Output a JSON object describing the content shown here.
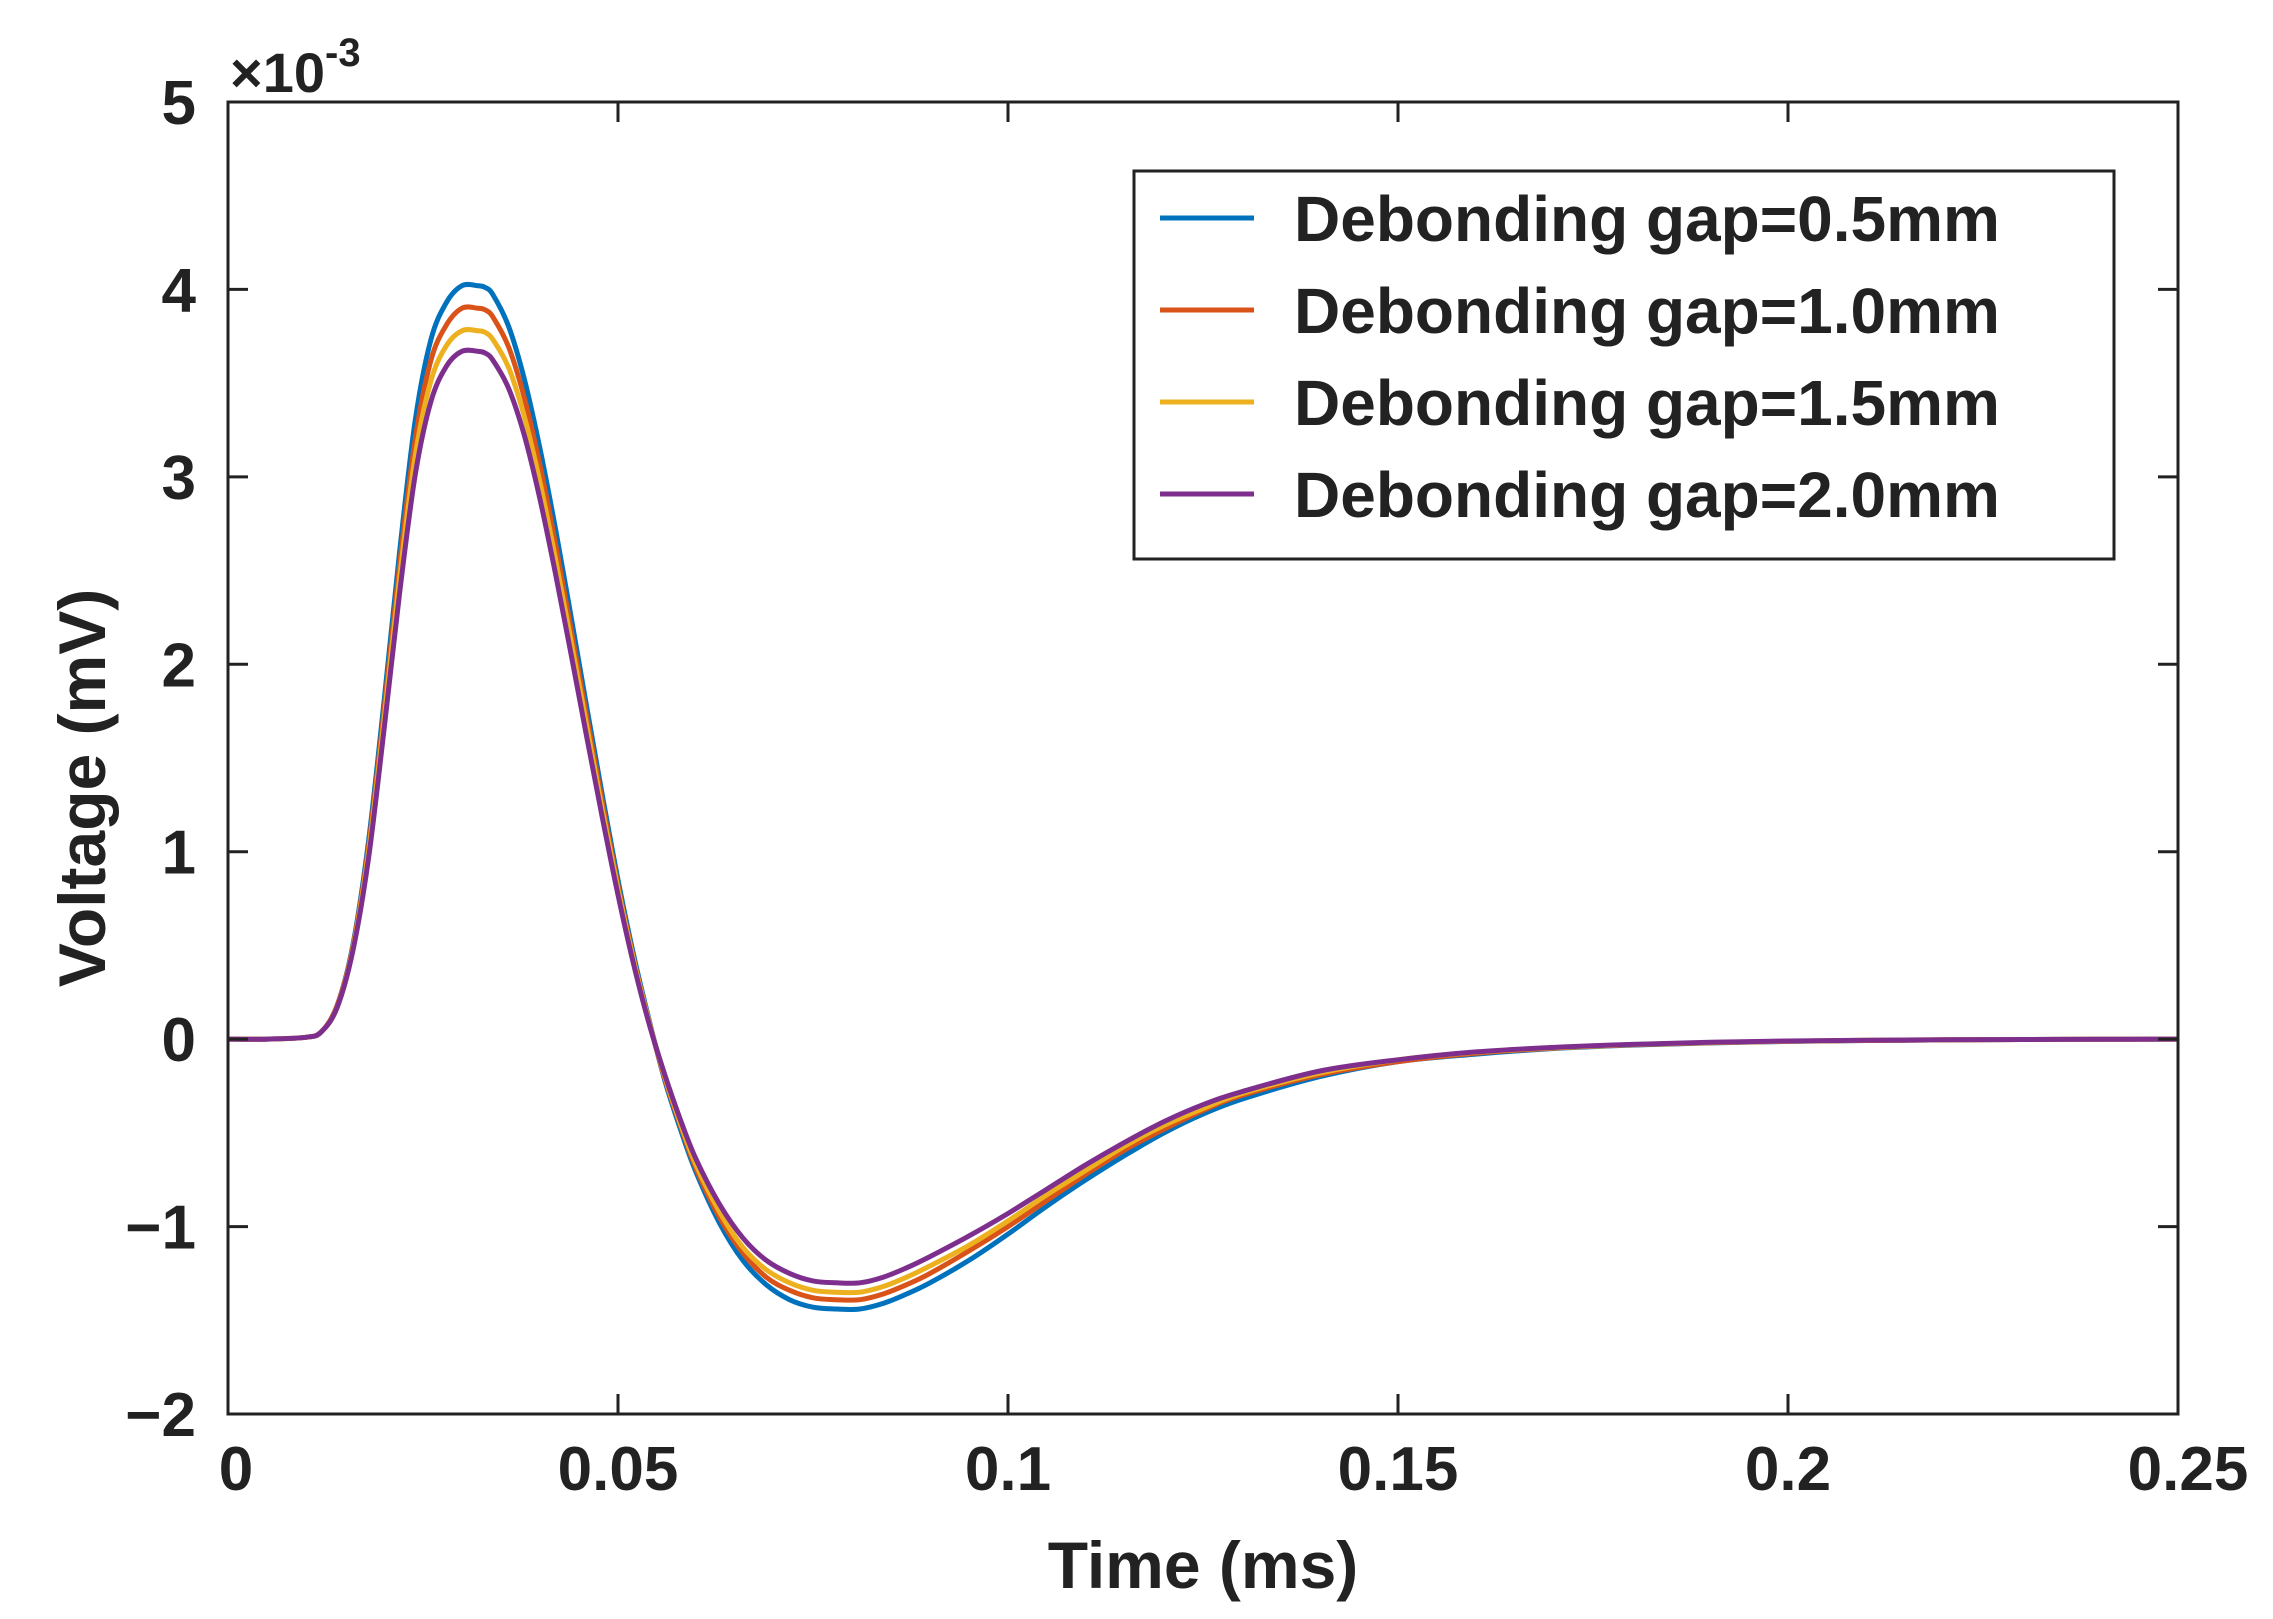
{
  "chart_data": {
    "type": "line",
    "title": "",
    "xlabel": "Time (ms)",
    "ylabel": "Voltage (mV)",
    "xlim": [
      0,
      0.25
    ],
    "ylim": [
      -0.002,
      0.005
    ],
    "y_exponent_label": "×10",
    "y_exponent_power": "-3",
    "x_ticks": [
      0,
      0.05,
      0.1,
      0.15,
      0.2,
      0.25
    ],
    "x_tick_labels": [
      "0",
      "0.05",
      "0.1",
      "0.15",
      "0.2",
      "0.25"
    ],
    "y_ticks": [
      -0.002,
      -0.001,
      0,
      0.001,
      0.002,
      0.003,
      0.004,
      0.005
    ],
    "y_tick_labels": [
      "−2",
      "−1",
      "0",
      "1",
      "2",
      "3",
      "4",
      "5"
    ],
    "grid": false,
    "legend_position": "top-right",
    "x": [
      0,
      0.005,
      0.01,
      0.012,
      0.014,
      0.016,
      0.018,
      0.02,
      0.022,
      0.024,
      0.026,
      0.028,
      0.03,
      0.032,
      0.033,
      0.034,
      0.036,
      0.038,
      0.04,
      0.042,
      0.044,
      0.046,
      0.048,
      0.05,
      0.052,
      0.054,
      0.056,
      0.058,
      0.06,
      0.063,
      0.066,
      0.069,
      0.072,
      0.075,
      0.078,
      0.081,
      0.084,
      0.087,
      0.09,
      0.095,
      0.1,
      0.105,
      0.11,
      0.115,
      0.12,
      0.125,
      0.13,
      0.14,
      0.15,
      0.16,
      0.17,
      0.18,
      0.19,
      0.2,
      0.21,
      0.22,
      0.23,
      0.24,
      0.25
    ],
    "series": [
      {
        "name": "Debonding gap=0.5mm",
        "color": "#0072BD",
        "values": [
          0,
          0,
          1e-05,
          4e-05,
          0.00018,
          0.0005,
          0.00105,
          0.0018,
          0.0026,
          0.0033,
          0.00373,
          0.00393,
          0.00402,
          0.00402,
          0.00401,
          0.00397,
          0.0038,
          0.00352,
          0.00315,
          0.00272,
          0.00225,
          0.00177,
          0.0013,
          0.00085,
          0.00045,
          0.0001,
          -0.00022,
          -0.00048,
          -0.00071,
          -0.00098,
          -0.00118,
          -0.00131,
          -0.00139,
          -0.00143,
          -0.00144,
          -0.00144,
          -0.00141,
          -0.00136,
          -0.0013,
          -0.00118,
          -0.00104,
          -0.00089,
          -0.00075,
          -0.00062,
          -0.0005,
          -0.0004,
          -0.00032,
          -0.0002,
          -0.00012,
          -8e-05,
          -5e-05,
          -3.2e-05,
          -2e-05,
          -1.2e-05,
          -7e-06,
          -4e-06,
          -2e-06,
          -1e-06,
          0
        ]
      },
      {
        "name": "Debonding gap=1.0mm",
        "color": "#D95319",
        "values": [
          0,
          0,
          1e-05,
          4e-05,
          0.00018,
          0.00049,
          0.00102,
          0.00175,
          0.00253,
          0.0032,
          0.00362,
          0.00381,
          0.0039,
          0.0039,
          0.00389,
          0.00385,
          0.00369,
          0.00342,
          0.00306,
          0.00264,
          0.00218,
          0.00172,
          0.00126,
          0.00082,
          0.00043,
          9e-05,
          -0.00021,
          -0.00046,
          -0.00069,
          -0.00095,
          -0.00114,
          -0.00127,
          -0.00134,
          -0.00138,
          -0.00139,
          -0.00139,
          -0.00136,
          -0.00131,
          -0.00125,
          -0.00113,
          -0.001,
          -0.00086,
          -0.00072,
          -0.00059,
          -0.00048,
          -0.00038,
          -0.0003,
          -0.00019,
          -0.00012,
          -7.5e-05,
          -4.8e-05,
          -3e-05,
          -1.9e-05,
          -1.1e-05,
          -7e-06,
          -4e-06,
          -2e-06,
          -1e-06,
          0
        ]
      },
      {
        "name": "Debonding gap=1.5mm",
        "color": "#EDB120",
        "values": [
          0,
          0,
          1e-05,
          4e-05,
          0.00017,
          0.00048,
          0.00099,
          0.0017,
          0.00246,
          0.00311,
          0.00351,
          0.0037,
          0.00378,
          0.00378,
          0.00377,
          0.00373,
          0.00358,
          0.00332,
          0.00297,
          0.00256,
          0.00212,
          0.00167,
          0.00122,
          0.0008,
          0.00042,
          9e-05,
          -0.0002,
          -0.00045,
          -0.00067,
          -0.00092,
          -0.00111,
          -0.00123,
          -0.0013,
          -0.00134,
          -0.00135,
          -0.00135,
          -0.00132,
          -0.00127,
          -0.00121,
          -0.0011,
          -0.00097,
          -0.00083,
          -0.0007,
          -0.00057,
          -0.00046,
          -0.00037,
          -0.00029,
          -0.00018,
          -0.00011,
          -7e-05,
          -4.6e-05,
          -2.9e-05,
          -1.8e-05,
          -1.1e-05,
          -6e-06,
          -3e-06,
          -2e-06,
          -1e-06,
          0
        ]
      },
      {
        "name": "Debonding gap=2.0mm",
        "color": "#7E2F8E",
        "values": [
          0,
          0,
          1e-05,
          4e-05,
          0.00017,
          0.00047,
          0.00096,
          0.00165,
          0.00238,
          0.00301,
          0.0034,
          0.00359,
          0.00367,
          0.00367,
          0.00366,
          0.00362,
          0.00347,
          0.00322,
          0.00288,
          0.00248,
          0.00205,
          0.00161,
          0.00118,
          0.00077,
          0.0004,
          8e-05,
          -0.00019,
          -0.00043,
          -0.00064,
          -0.00088,
          -0.00106,
          -0.00118,
          -0.00125,
          -0.00129,
          -0.0013,
          -0.0013,
          -0.00127,
          -0.00122,
          -0.00116,
          -0.00105,
          -0.00093,
          -0.0008,
          -0.00067,
          -0.00055,
          -0.00044,
          -0.00035,
          -0.00028,
          -0.00017,
          -0.00011,
          -6.8e-05,
          -4.4e-05,
          -2.8e-05,
          -1.7e-05,
          -1e-05,
          -6e-06,
          -3e-06,
          -2e-06,
          -1e-06,
          0
        ]
      }
    ]
  }
}
